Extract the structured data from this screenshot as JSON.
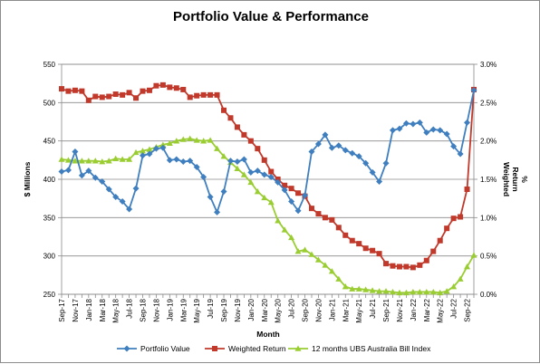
{
  "chart_data": {
    "type": "line",
    "title": "Portfolio Value & Performance",
    "xlabel": "Month",
    "ylabel_left": "$ Millions",
    "ylabel_right_lines": [
      "Weighted",
      "Return",
      "%"
    ],
    "ylim_left": [
      250,
      550
    ],
    "ylim_right": [
      0,
      3
    ],
    "yticks_left": [
      "250",
      "300",
      "350",
      "400",
      "450",
      "500",
      "550"
    ],
    "yticks_right": [
      "0.0%",
      "0.5%",
      "1.0%",
      "1.5%",
      "2.0%",
      "2.5%",
      "3.0%"
    ],
    "x_tick_labels": [
      "Sep-17",
      "Nov-17",
      "Jan-18",
      "Mar-18",
      "May-18",
      "Jul-18",
      "Sep-18",
      "Nov-18",
      "Jan-19",
      "Mar-19",
      "May-19",
      "Jul-19",
      "Sep-19",
      "Nov-19",
      "Jan-20",
      "Mar-20",
      "May-20",
      "Jul-20",
      "Sep-20",
      "Nov-20",
      "Jan-21",
      "Mar-21",
      "May-21",
      "Jul-21",
      "Sep-21",
      "Nov-21",
      "Jan-22",
      "Mar-22",
      "May-22",
      "Jul-22",
      "Sep-22"
    ],
    "grid": "horizontal",
    "legend_position": "bottom",
    "series": [
      {
        "name": "Portfolio Value",
        "axis": "left",
        "color": "#3f7fbf",
        "marker": "diamond",
        "values": [
          410,
          412,
          436,
          405,
          411,
          402,
          397,
          387,
          377,
          371,
          361,
          388,
          431,
          433,
          440,
          441,
          425,
          426,
          423,
          424,
          416,
          403,
          377,
          357,
          384,
          424,
          423,
          426,
          409,
          411,
          406,
          403,
          396,
          386,
          371,
          359,
          379,
          436,
          446,
          458,
          441,
          444,
          438,
          434,
          430,
          421,
          409,
          397,
          421,
          464,
          466,
          473,
          472,
          474,
          461,
          465,
          464,
          459,
          443,
          433,
          474,
          516
        ]
      },
      {
        "name": "Weighted Return",
        "axis": "right",
        "color": "#c0392b",
        "marker": "square",
        "values": [
          2.68,
          2.65,
          2.66,
          2.65,
          2.53,
          2.58,
          2.57,
          2.58,
          2.61,
          2.6,
          2.63,
          2.56,
          2.65,
          2.66,
          2.72,
          2.73,
          2.7,
          2.69,
          2.67,
          2.57,
          2.59,
          2.6,
          2.6,
          2.6,
          2.4,
          2.3,
          2.18,
          2.08,
          2.0,
          1.9,
          1.75,
          1.6,
          1.5,
          1.42,
          1.38,
          1.32,
          1.28,
          1.12,
          1.05,
          1.0,
          0.97,
          0.87,
          0.77,
          0.7,
          0.66,
          0.6,
          0.57,
          0.53,
          0.4,
          0.37,
          0.36,
          0.36,
          0.35,
          0.38,
          0.44,
          0.56,
          0.7,
          0.86,
          0.99,
          1.01,
          1.37,
          2.67
        ]
      },
      {
        "name": "12 months UBS Australia Bill Index",
        "axis": "right",
        "color": "#9acd32",
        "marker": "triangle",
        "values": [
          1.76,
          1.75,
          1.74,
          1.74,
          1.74,
          1.74,
          1.73,
          1.74,
          1.77,
          1.76,
          1.76,
          1.85,
          1.87,
          1.89,
          1.92,
          1.95,
          1.97,
          2.0,
          2.02,
          2.03,
          2.01,
          2.0,
          2.01,
          1.9,
          1.8,
          1.72,
          1.64,
          1.56,
          1.46,
          1.34,
          1.26,
          1.2,
          0.96,
          0.84,
          0.74,
          0.56,
          0.58,
          0.52,
          0.45,
          0.38,
          0.3,
          0.2,
          0.1,
          0.07,
          0.07,
          0.06,
          0.05,
          0.04,
          0.04,
          0.03,
          0.02,
          0.02,
          0.03,
          0.03,
          0.03,
          0.03,
          0.02,
          0.04,
          0.1,
          0.2,
          0.36,
          0.51
        ]
      }
    ]
  }
}
